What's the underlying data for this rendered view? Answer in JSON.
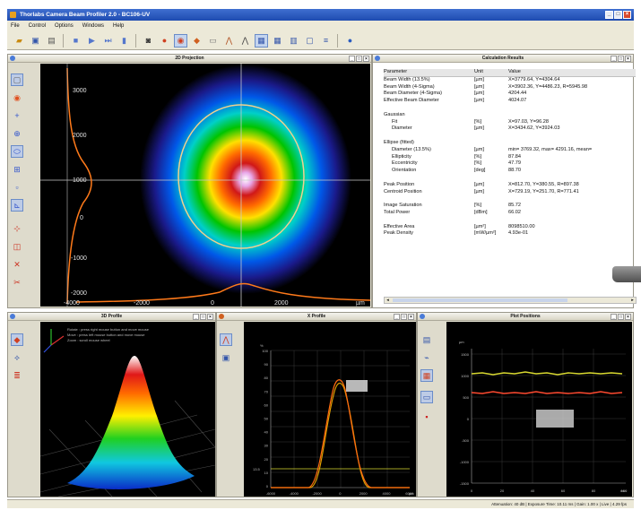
{
  "window": {
    "title": "Thorlabs Camera Beam Profiler 2.0 - BC106-UV"
  },
  "menu": [
    "File",
    "Control",
    "Options",
    "Windows",
    "Help"
  ],
  "projection": {
    "title": "2D Projection",
    "y_ticks": [
      "3000",
      "2000",
      "1000",
      "0",
      "-1000",
      "-2000"
    ],
    "x_ticks": [
      "-4000",
      "-2000",
      "0",
      "2000"
    ],
    "x_unit": "µm"
  },
  "calc": {
    "title": "Calculation Results",
    "columns": [
      "Parameter",
      "Unit",
      "Value"
    ],
    "rows": [
      {
        "p": "Beam Width (13.5%)",
        "u": "[µm]",
        "v": "X=3779.64, Y=4304.64",
        "indent": false
      },
      {
        "p": "Beam Width (4-Sigma)",
        "u": "[µm]",
        "v": "X=3902.36, Y=4486.23, R=5945.98",
        "indent": false
      },
      {
        "p": "Beam Diameter (4-Sigma)",
        "u": "[µm]",
        "v": "4204.44",
        "indent": false
      },
      {
        "p": "Effective Beam Diameter",
        "u": "[µm]",
        "v": "4024.07",
        "indent": false
      },
      {
        "p": "",
        "u": "",
        "v": "",
        "indent": false
      },
      {
        "p": "Gaussian",
        "u": "",
        "v": "",
        "indent": false
      },
      {
        "p": "Fit",
        "u": "[%]",
        "v": "X=97.03, Y=96.28",
        "indent": true
      },
      {
        "p": "Diameter",
        "u": "[µm]",
        "v": "X=3434.62, Y=3924.03",
        "indent": true
      },
      {
        "p": "",
        "u": "",
        "v": "",
        "indent": false
      },
      {
        "p": "Ellipse (fitted)",
        "u": "",
        "v": "",
        "indent": false
      },
      {
        "p": "Diameter (13.5%)",
        "u": "[µm]",
        "v": "min= 3769.32, max= 4291.16, mean=",
        "indent": true
      },
      {
        "p": "Ellipticity",
        "u": "[%]",
        "v": "87.84",
        "indent": true
      },
      {
        "p": "Eccentricity",
        "u": "[%]",
        "v": "47.79",
        "indent": true
      },
      {
        "p": "Orientation",
        "u": "[deg]",
        "v": "88.70",
        "indent": true
      },
      {
        "p": "",
        "u": "",
        "v": "",
        "indent": false
      },
      {
        "p": "Peak Position",
        "u": "[µm]",
        "v": "X=812.70, Y=380.55, R=897.38",
        "indent": false
      },
      {
        "p": "Centroid Position",
        "u": "[µm]",
        "v": "X=729.19, Y=251.70, R=771.41",
        "indent": false
      },
      {
        "p": "",
        "u": "",
        "v": "",
        "indent": false
      },
      {
        "p": "Image Saturation",
        "u": "[%]",
        "v": "85.72",
        "indent": false
      },
      {
        "p": "Total Power",
        "u": "[dBm]",
        "v": "66.02",
        "indent": false
      },
      {
        "p": "",
        "u": "",
        "v": "",
        "indent": false
      },
      {
        "p": "Effective Area",
        "u": "[µm²]",
        "v": "8098510.00",
        "indent": false
      },
      {
        "p": "Peak Density",
        "u": "[mW/µm²]",
        "v": "4.93e-01",
        "indent": false
      }
    ]
  },
  "profile3d": {
    "title": "3D Profile",
    "help": [
      "Rotate : press right mouse button and move mouse",
      "Move : press left mouse button and move mouse",
      "Zoom : scroll mouse wheel"
    ]
  },
  "xprofile": {
    "title": "X Profile",
    "y_unit": "%",
    "y_ticks": [
      "100",
      "90",
      "80",
      "70",
      "60",
      "50",
      "40",
      "30",
      "20",
      "10",
      "0"
    ],
    "x_ticks": [
      "-6000",
      "-4000",
      "-2000",
      "0",
      "2000",
      "4000",
      "6000"
    ],
    "x_unit": "µm",
    "level_label": "13.5"
  },
  "plotpos": {
    "title": "Plot Positions",
    "y_unit": "µm",
    "y_ticks": [
      "1500",
      "1000",
      "500",
      "0",
      "-500",
      "-1000",
      "-1500"
    ],
    "x_ticks": [
      "0",
      "20",
      "40",
      "60",
      "80",
      "100"
    ],
    "x_unit": "min"
  },
  "status": "Attenuation: 40 dB | Exposure Time: 10.11 ms | Gain: 1.00 x | Live | 4.29 fps"
}
